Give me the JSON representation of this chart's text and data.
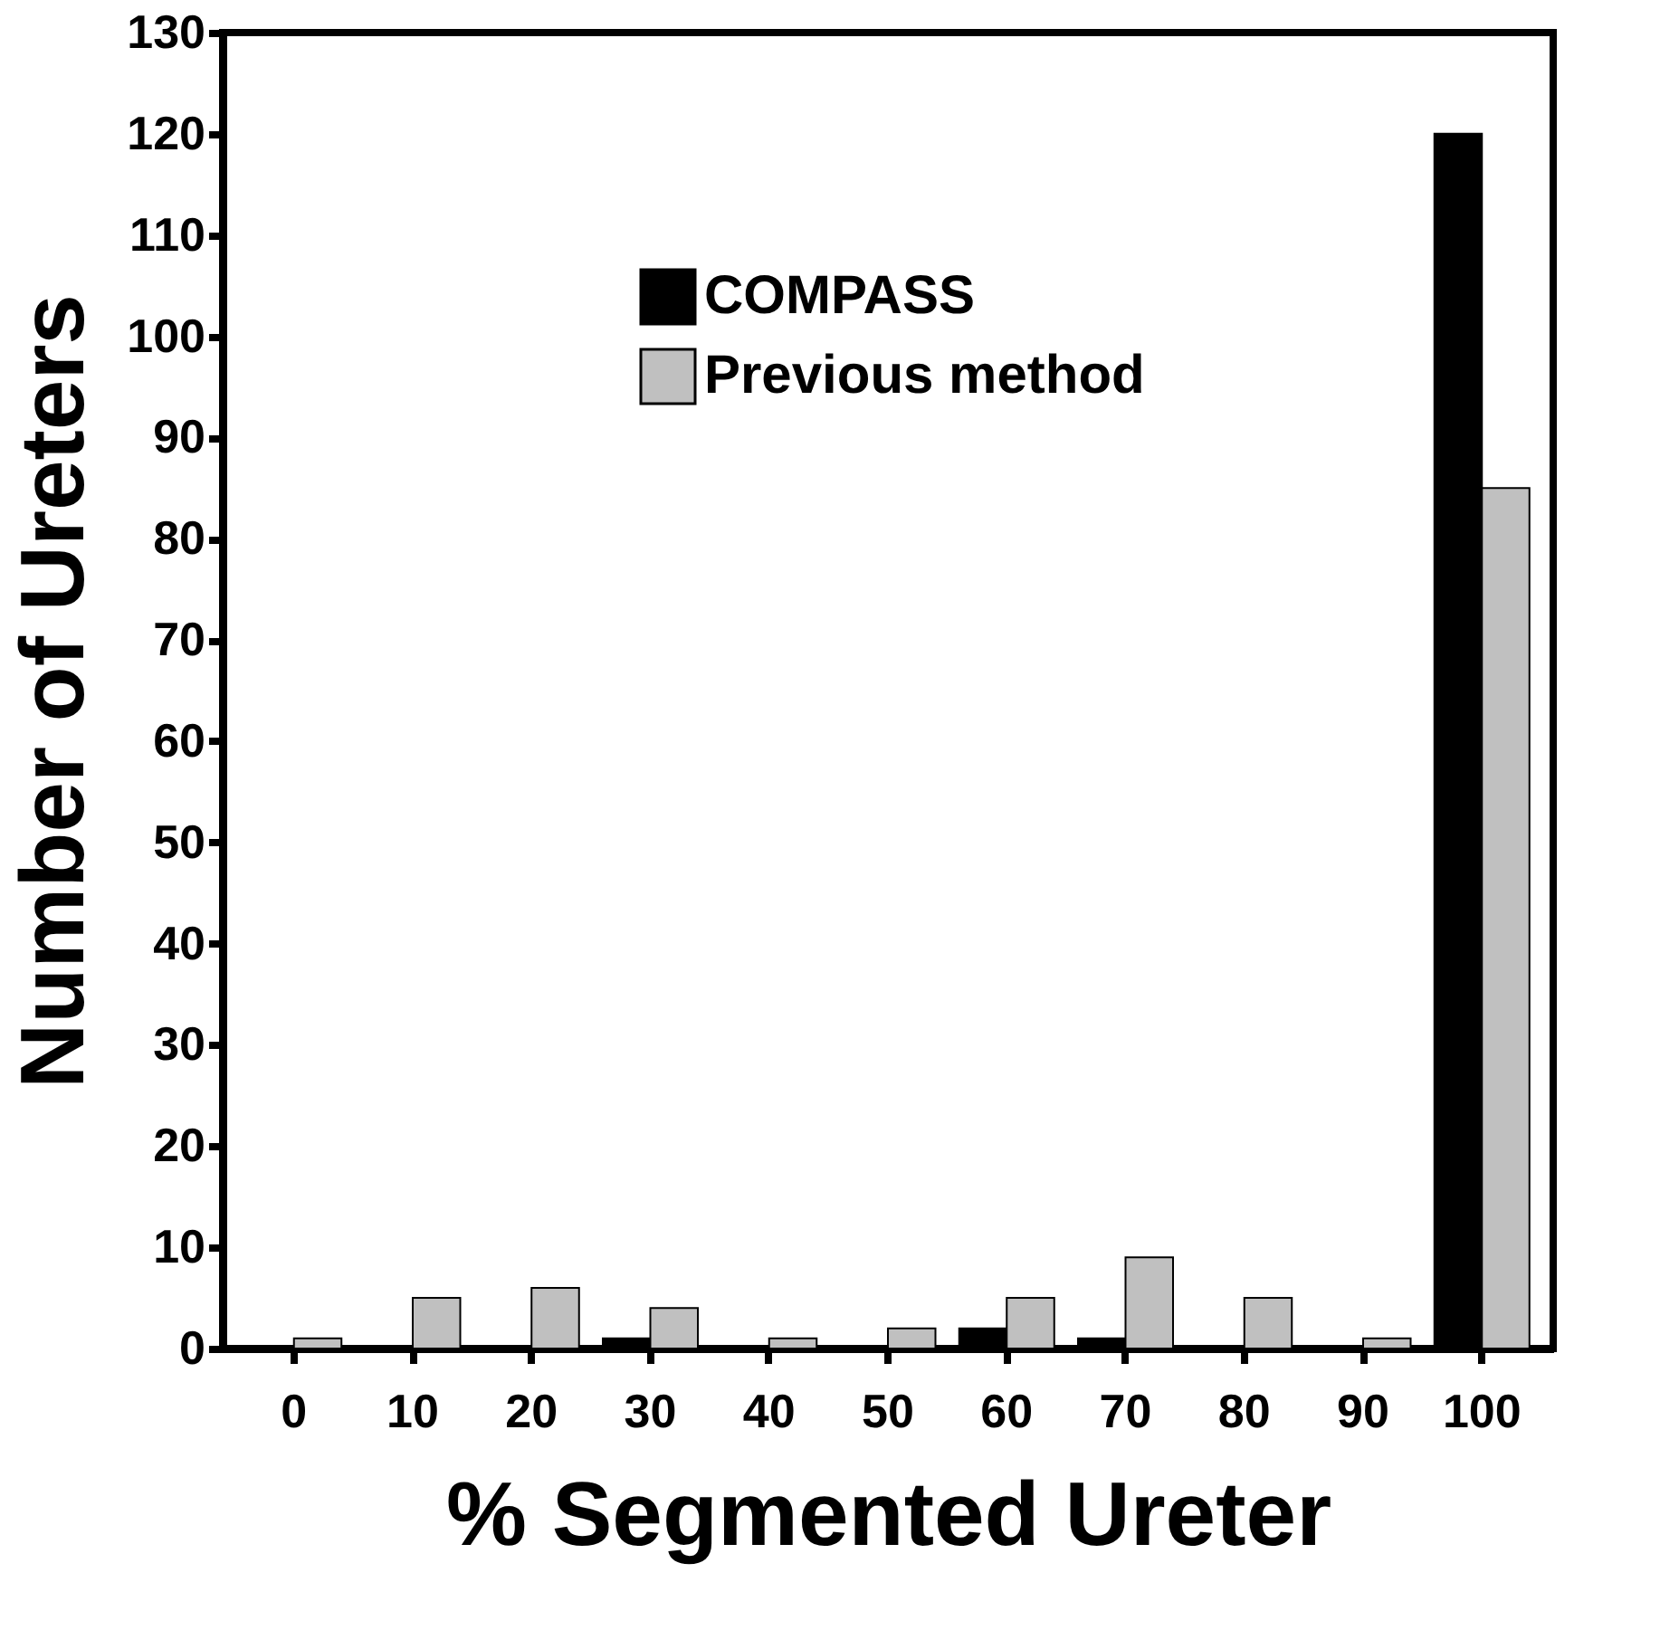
{
  "chart_data": {
    "type": "bar",
    "xlabel": "% Segmented Ureter",
    "ylabel": "Number of Ureters",
    "categories": [
      "0",
      "10",
      "20",
      "30",
      "40",
      "50",
      "60",
      "70",
      "80",
      "90",
      "100"
    ],
    "series": [
      {
        "name": "COMPASS",
        "color": "#000000",
        "values": [
          0,
          0,
          0,
          1,
          0,
          0,
          2,
          1,
          0,
          0,
          120
        ]
      },
      {
        "name": "Previous method",
        "color": "#c0c0c0",
        "values": [
          1,
          5,
          6,
          4,
          1,
          2,
          5,
          9,
          5,
          1,
          85
        ]
      }
    ],
    "ylim": [
      0,
      130
    ],
    "yticks": [
      0,
      10,
      20,
      30,
      40,
      50,
      60,
      70,
      80,
      90,
      100,
      110,
      120,
      130
    ],
    "grid": false,
    "legend": "top"
  }
}
